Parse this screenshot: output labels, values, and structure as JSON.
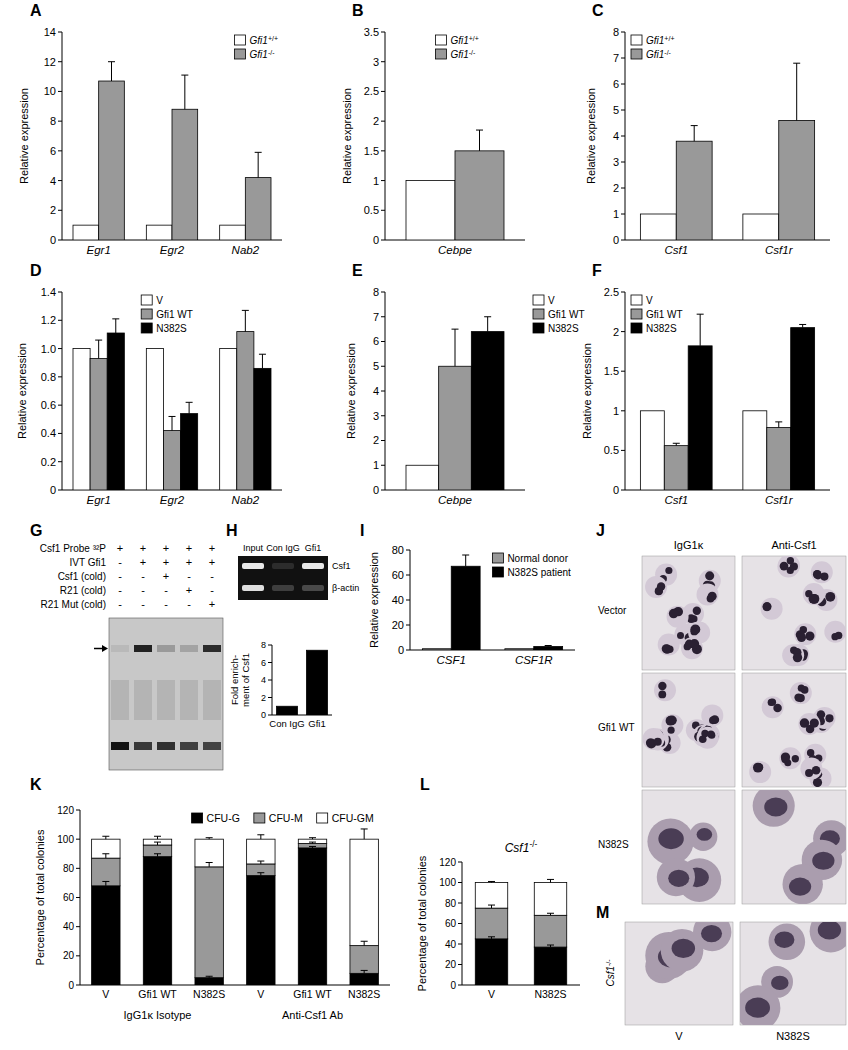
{
  "chart_data": [
    {
      "panel": "A",
      "type": "bar",
      "categories": [
        "Egr1",
        "Egr2",
        "Nab2"
      ],
      "series": [
        {
          "name": "Gfi1+/+",
          "color": "#ffffff",
          "values": [
            1,
            1,
            1
          ],
          "errors": [
            null,
            null,
            null
          ]
        },
        {
          "name": "Gfi1-/-",
          "color": "#999999",
          "values": [
            10.7,
            8.8,
            4.2
          ],
          "errors": [
            1.3,
            2.3,
            1.7
          ]
        }
      ],
      "y_label": "Relative expression",
      "ylim": [
        0,
        14
      ],
      "yticks": [
        0,
        2,
        4,
        6,
        8,
        10,
        12,
        14
      ],
      "legend": "top-right"
    },
    {
      "panel": "B",
      "type": "bar",
      "categories": [
        "Cebpe"
      ],
      "series": [
        {
          "name": "Gfi1+/+",
          "color": "#ffffff",
          "values": [
            1
          ],
          "errors": [
            null
          ]
        },
        {
          "name": "Gfi1-/-",
          "color": "#999999",
          "values": [
            1.5
          ],
          "errors": [
            0.35
          ]
        }
      ],
      "y_label": "Relative expression",
      "ylim": [
        0,
        3.5
      ],
      "yticks": [
        0,
        0.5,
        1,
        1.5,
        2,
        2.5,
        3,
        3.5
      ],
      "legend": "top"
    },
    {
      "panel": "C",
      "type": "bar",
      "categories": [
        "Csf1",
        "Csf1r"
      ],
      "series": [
        {
          "name": "Gfi1+/+",
          "color": "#ffffff",
          "values": [
            1,
            1
          ],
          "errors": [
            null,
            null
          ]
        },
        {
          "name": "Gfi1-/-",
          "color": "#999999",
          "values": [
            3.8,
            4.6
          ],
          "errors": [
            0.6,
            2.2
          ]
        }
      ],
      "y_label": "Relative expression",
      "ylim": [
        0,
        8
      ],
      "yticks": [
        0,
        1,
        2,
        3,
        4,
        5,
        6,
        7,
        8
      ],
      "legend": "top-left"
    },
    {
      "panel": "D",
      "type": "bar",
      "categories": [
        "Egr1",
        "Egr2",
        "Nab2"
      ],
      "series": [
        {
          "name": "V",
          "color": "#ffffff",
          "values": [
            1,
            1,
            1
          ],
          "errors": [
            null,
            null,
            null
          ]
        },
        {
          "name": "Gfi1 WT",
          "color": "#999999",
          "values": [
            0.93,
            0.42,
            1.12
          ],
          "errors": [
            0.13,
            0.1,
            0.15
          ]
        },
        {
          "name": "N382S",
          "color": "#000000",
          "values": [
            1.11,
            0.54,
            0.86
          ],
          "errors": [
            0.1,
            0.08,
            0.1
          ]
        }
      ],
      "y_label": "Relative expression",
      "ylim": [
        0,
        1.4
      ],
      "yticks": [
        0,
        0.2,
        0.4,
        0.6,
        0.8,
        {
          "value": 1,
          "label": "1.0"
        },
        1.2,
        1.4
      ],
      "legend": "top"
    },
    {
      "panel": "E",
      "type": "bar",
      "categories": [
        "Cebpe"
      ],
      "series": [
        {
          "name": "V",
          "color": "#ffffff",
          "values": [
            1
          ],
          "errors": [
            null
          ]
        },
        {
          "name": "Gfi1 WT",
          "color": "#999999",
          "values": [
            5.0
          ],
          "errors": [
            1.5
          ]
        },
        {
          "name": "N382S",
          "color": "#000000",
          "values": [
            6.4
          ],
          "errors": [
            0.6
          ]
        }
      ],
      "y_label": "Relative expression",
      "ylim": [
        0,
        8
      ],
      "yticks": [
        0,
        1,
        2,
        3,
        4,
        5,
        6,
        7,
        8
      ],
      "legend": "right"
    },
    {
      "panel": "F",
      "type": "bar",
      "categories": [
        "Csf1",
        "Csf1r"
      ],
      "series": [
        {
          "name": "V",
          "color": "#ffffff",
          "values": [
            1,
            1
          ],
          "errors": [
            null,
            null
          ]
        },
        {
          "name": "Gfi1 WT",
          "color": "#999999",
          "values": [
            0.56,
            0.79
          ],
          "errors": [
            0.03,
            0.07
          ]
        },
        {
          "name": "N382S",
          "color": "#000000",
          "values": [
            1.82,
            2.05
          ],
          "errors": [
            0.4,
            0.04
          ]
        }
      ],
      "y_label": "Relative expression",
      "ylim": [
        0,
        2.5
      ],
      "yticks": [
        0,
        0.5,
        1,
        1.5,
        2,
        2.5
      ],
      "legend": "top-left"
    },
    {
      "type": "bar",
      "categories": [
        "Con IgG",
        "Gfi1"
      ],
      "values": [
        1,
        7.4
      ],
      "color": "#000000",
      "y_label": [
        "Fold enrich-",
        "ment of Csf1"
      ],
      "ylim": [
        0,
        8
      ],
      "yticks": [
        0,
        2,
        4,
        6,
        8
      ]
    },
    {
      "panel": "I",
      "type": "bar",
      "categories": [
        "CSF1",
        "CSF1R"
      ],
      "series": [
        {
          "name": "Normal donor",
          "color": "#999999",
          "values": [
            1,
            1
          ],
          "errors": [
            null,
            null
          ]
        },
        {
          "name": "N382S patient",
          "color": "#000000",
          "values": [
            67,
            2.8
          ],
          "errors": [
            9,
            0.8
          ]
        }
      ],
      "y_label": "Relative expression",
      "ylim": [
        0,
        80
      ],
      "yticks": [
        0,
        20,
        40,
        60,
        80
      ],
      "legend": "top-right"
    },
    {
      "panel": "K",
      "type": "bar",
      "stacked": true,
      "categories": [
        "V",
        "Gfi1 WT",
        "N382S",
        "V",
        "Gfi1 WT",
        "N382S"
      ],
      "groups": [
        "IgG1κ Isotype",
        "Anti-Csf1 Ab"
      ],
      "series": [
        {
          "name": "CFU-G",
          "color": "#000000",
          "values": [
            68,
            88,
            5,
            75,
            94,
            8
          ],
          "errors": [
            3,
            2,
            1,
            2,
            1,
            2
          ]
        },
        {
          "name": "CFU-M",
          "color": "#999999",
          "values": [
            19,
            8,
            76,
            8,
            3,
            19
          ],
          "errors": [
            3,
            2,
            3,
            2,
            1,
            3
          ]
        },
        {
          "name": "CFU-GM",
          "color": "#ffffff",
          "values": [
            13,
            4,
            19,
            17,
            3,
            73
          ],
          "errors": [
            2,
            2,
            1,
            3,
            1,
            7
          ]
        }
      ],
      "y_label": "Percentage of total colonies",
      "ylim": [
        0,
        120
      ],
      "yticks": [
        0,
        20,
        40,
        60,
        80,
        100,
        120
      ],
      "legend": "top"
    },
    {
      "panel": "L",
      "type": "bar",
      "stacked": true,
      "title": "Csf1-/-",
      "categories": [
        "V",
        "N382S"
      ],
      "series": [
        {
          "color": "#000000",
          "values": [
            45,
            37
          ],
          "errors": [
            2,
            2
          ]
        },
        {
          "color": "#999999",
          "values": [
            30,
            31
          ],
          "errors": [
            3,
            2
          ]
        },
        {
          "color": "#ffffff",
          "values": [
            25,
            32
          ],
          "errors": [
            1,
            3
          ]
        }
      ],
      "y_label": "Percentage of total colonies",
      "ylim": [
        0,
        120
      ],
      "yticks": [
        0,
        20,
        40,
        60,
        80,
        100,
        120
      ]
    }
  ],
  "gel_G": {
    "panel": "G",
    "rows": [
      {
        "label": "Csf1 Probe ³²P",
        "signs": [
          "+",
          "+",
          "+",
          "+",
          "+"
        ]
      },
      {
        "label": "IVT Gfi1",
        "signs": [
          "-",
          "+",
          "+",
          "+",
          "+"
        ]
      },
      {
        "label": "Csf1 (cold)",
        "signs": [
          "-",
          "-",
          "+",
          "-",
          "-"
        ]
      },
      {
        "label": "R21 (cold)",
        "signs": [
          "-",
          "-",
          "-",
          "+",
          "-"
        ]
      },
      {
        "label": "R21 Mut (cold)",
        "signs": [
          "-",
          "-",
          "-",
          "-",
          "+"
        ]
      }
    ]
  },
  "gel_H": {
    "panel": "H",
    "lanes": [
      "Input",
      "Con IgG",
      "Gfi1"
    ],
    "bands": [
      "Csf1",
      "β-actin"
    ]
  },
  "micrographs_J": {
    "panel": "J",
    "columns": [
      "IgG1κ",
      "Anti-Csf1"
    ],
    "rows": [
      "Vector",
      "Gfi1 WT",
      "N382S"
    ]
  },
  "micrographs_M": {
    "panel": "M",
    "label": "Csf1-/-",
    "columns": [
      "V",
      "N382S"
    ]
  }
}
